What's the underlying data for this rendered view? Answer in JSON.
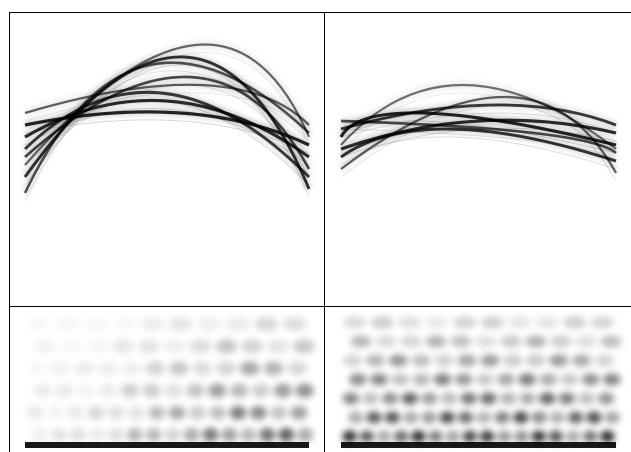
{
  "figure": {
    "panels": [
      {
        "id": "top-left",
        "kind": "curve-bundle",
        "curves": [
          {
            "start": 0.72,
            "peak": 0.12,
            "peak_pos": 0.56,
            "end": 0.78,
            "strength": 0.9
          },
          {
            "start": 0.62,
            "peak": 0.22,
            "peak_pos": 0.58,
            "end": 0.68,
            "strength": 0.75
          },
          {
            "start": 0.52,
            "peak": 0.34,
            "peak_pos": 0.5,
            "end": 0.62,
            "strength": 0.95
          },
          {
            "start": 0.46,
            "peak": 0.4,
            "peak_pos": 0.55,
            "end": 0.56,
            "strength": 1.0
          },
          {
            "start": 0.58,
            "peak": 0.3,
            "peak_pos": 0.48,
            "end": 0.72,
            "strength": 0.85
          },
          {
            "start": 0.4,
            "peak": 0.26,
            "peak_pos": 0.62,
            "end": 0.46,
            "strength": 0.6
          },
          {
            "start": 0.66,
            "peak": 0.06,
            "peak_pos": 0.6,
            "end": 0.52,
            "strength": 0.55
          },
          {
            "start": 0.8,
            "peak": 0.16,
            "peak_pos": 0.44,
            "end": 0.5,
            "strength": 0.7
          }
        ]
      },
      {
        "id": "top-right",
        "kind": "curve-bundle",
        "curves": [
          {
            "start": 0.52,
            "peak": 0.4,
            "peak_pos": 0.3,
            "end": 0.56,
            "strength": 1.0
          },
          {
            "start": 0.58,
            "peak": 0.44,
            "peak_pos": 0.5,
            "end": 0.5,
            "strength": 0.95
          },
          {
            "start": 0.62,
            "peak": 0.48,
            "peak_pos": 0.4,
            "end": 0.64,
            "strength": 0.9
          },
          {
            "start": 0.48,
            "peak": 0.36,
            "peak_pos": 0.55,
            "end": 0.46,
            "strength": 0.85
          },
          {
            "start": 0.68,
            "peak": 0.32,
            "peak_pos": 0.6,
            "end": 0.7,
            "strength": 0.6
          },
          {
            "start": 0.56,
            "peak": 0.26,
            "peak_pos": 0.45,
            "end": 0.58,
            "strength": 0.5
          },
          {
            "start": 0.44,
            "peak": 0.5,
            "peak_pos": 0.7,
            "end": 0.6,
            "strength": 0.75
          }
        ]
      },
      {
        "id": "bottom-left",
        "kind": "interference-field",
        "rows": 6,
        "bias": "right",
        "intensity": 0.75
      },
      {
        "id": "bottom-right",
        "kind": "interference-field",
        "rows": 7,
        "bias": "uniform",
        "intensity": 0.95
      }
    ],
    "colors": {
      "ink": "#000000",
      "background": "#ffffff",
      "grid": "#000000"
    }
  }
}
